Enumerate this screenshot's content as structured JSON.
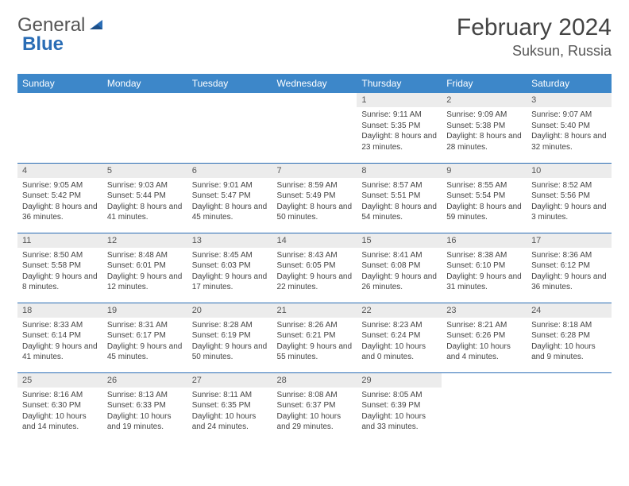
{
  "brand": {
    "part1": "General",
    "part2": "Blue"
  },
  "title": "February 2024",
  "location": "Suksun, Russia",
  "dayHeaders": [
    "Sunday",
    "Monday",
    "Tuesday",
    "Wednesday",
    "Thursday",
    "Friday",
    "Saturday"
  ],
  "colors": {
    "headerBg": "#3d87c9",
    "accent": "#2a6db5",
    "dayBg": "#ececec"
  },
  "weeks": [
    [
      null,
      null,
      null,
      null,
      {
        "n": "1",
        "sunrise": "Sunrise: 9:11 AM",
        "sunset": "Sunset: 5:35 PM",
        "daylight": "Daylight: 8 hours and 23 minutes."
      },
      {
        "n": "2",
        "sunrise": "Sunrise: 9:09 AM",
        "sunset": "Sunset: 5:38 PM",
        "daylight": "Daylight: 8 hours and 28 minutes."
      },
      {
        "n": "3",
        "sunrise": "Sunrise: 9:07 AM",
        "sunset": "Sunset: 5:40 PM",
        "daylight": "Daylight: 8 hours and 32 minutes."
      }
    ],
    [
      {
        "n": "4",
        "sunrise": "Sunrise: 9:05 AM",
        "sunset": "Sunset: 5:42 PM",
        "daylight": "Daylight: 8 hours and 36 minutes."
      },
      {
        "n": "5",
        "sunrise": "Sunrise: 9:03 AM",
        "sunset": "Sunset: 5:44 PM",
        "daylight": "Daylight: 8 hours and 41 minutes."
      },
      {
        "n": "6",
        "sunrise": "Sunrise: 9:01 AM",
        "sunset": "Sunset: 5:47 PM",
        "daylight": "Daylight: 8 hours and 45 minutes."
      },
      {
        "n": "7",
        "sunrise": "Sunrise: 8:59 AM",
        "sunset": "Sunset: 5:49 PM",
        "daylight": "Daylight: 8 hours and 50 minutes."
      },
      {
        "n": "8",
        "sunrise": "Sunrise: 8:57 AM",
        "sunset": "Sunset: 5:51 PM",
        "daylight": "Daylight: 8 hours and 54 minutes."
      },
      {
        "n": "9",
        "sunrise": "Sunrise: 8:55 AM",
        "sunset": "Sunset: 5:54 PM",
        "daylight": "Daylight: 8 hours and 59 minutes."
      },
      {
        "n": "10",
        "sunrise": "Sunrise: 8:52 AM",
        "sunset": "Sunset: 5:56 PM",
        "daylight": "Daylight: 9 hours and 3 minutes."
      }
    ],
    [
      {
        "n": "11",
        "sunrise": "Sunrise: 8:50 AM",
        "sunset": "Sunset: 5:58 PM",
        "daylight": "Daylight: 9 hours and 8 minutes."
      },
      {
        "n": "12",
        "sunrise": "Sunrise: 8:48 AM",
        "sunset": "Sunset: 6:01 PM",
        "daylight": "Daylight: 9 hours and 12 minutes."
      },
      {
        "n": "13",
        "sunrise": "Sunrise: 8:45 AM",
        "sunset": "Sunset: 6:03 PM",
        "daylight": "Daylight: 9 hours and 17 minutes."
      },
      {
        "n": "14",
        "sunrise": "Sunrise: 8:43 AM",
        "sunset": "Sunset: 6:05 PM",
        "daylight": "Daylight: 9 hours and 22 minutes."
      },
      {
        "n": "15",
        "sunrise": "Sunrise: 8:41 AM",
        "sunset": "Sunset: 6:08 PM",
        "daylight": "Daylight: 9 hours and 26 minutes."
      },
      {
        "n": "16",
        "sunrise": "Sunrise: 8:38 AM",
        "sunset": "Sunset: 6:10 PM",
        "daylight": "Daylight: 9 hours and 31 minutes."
      },
      {
        "n": "17",
        "sunrise": "Sunrise: 8:36 AM",
        "sunset": "Sunset: 6:12 PM",
        "daylight": "Daylight: 9 hours and 36 minutes."
      }
    ],
    [
      {
        "n": "18",
        "sunrise": "Sunrise: 8:33 AM",
        "sunset": "Sunset: 6:14 PM",
        "daylight": "Daylight: 9 hours and 41 minutes."
      },
      {
        "n": "19",
        "sunrise": "Sunrise: 8:31 AM",
        "sunset": "Sunset: 6:17 PM",
        "daylight": "Daylight: 9 hours and 45 minutes."
      },
      {
        "n": "20",
        "sunrise": "Sunrise: 8:28 AM",
        "sunset": "Sunset: 6:19 PM",
        "daylight": "Daylight: 9 hours and 50 minutes."
      },
      {
        "n": "21",
        "sunrise": "Sunrise: 8:26 AM",
        "sunset": "Sunset: 6:21 PM",
        "daylight": "Daylight: 9 hours and 55 minutes."
      },
      {
        "n": "22",
        "sunrise": "Sunrise: 8:23 AM",
        "sunset": "Sunset: 6:24 PM",
        "daylight": "Daylight: 10 hours and 0 minutes."
      },
      {
        "n": "23",
        "sunrise": "Sunrise: 8:21 AM",
        "sunset": "Sunset: 6:26 PM",
        "daylight": "Daylight: 10 hours and 4 minutes."
      },
      {
        "n": "24",
        "sunrise": "Sunrise: 8:18 AM",
        "sunset": "Sunset: 6:28 PM",
        "daylight": "Daylight: 10 hours and 9 minutes."
      }
    ],
    [
      {
        "n": "25",
        "sunrise": "Sunrise: 8:16 AM",
        "sunset": "Sunset: 6:30 PM",
        "daylight": "Daylight: 10 hours and 14 minutes."
      },
      {
        "n": "26",
        "sunrise": "Sunrise: 8:13 AM",
        "sunset": "Sunset: 6:33 PM",
        "daylight": "Daylight: 10 hours and 19 minutes."
      },
      {
        "n": "27",
        "sunrise": "Sunrise: 8:11 AM",
        "sunset": "Sunset: 6:35 PM",
        "daylight": "Daylight: 10 hours and 24 minutes."
      },
      {
        "n": "28",
        "sunrise": "Sunrise: 8:08 AM",
        "sunset": "Sunset: 6:37 PM",
        "daylight": "Daylight: 10 hours and 29 minutes."
      },
      {
        "n": "29",
        "sunrise": "Sunrise: 8:05 AM",
        "sunset": "Sunset: 6:39 PM",
        "daylight": "Daylight: 10 hours and 33 minutes."
      },
      null,
      null
    ]
  ]
}
